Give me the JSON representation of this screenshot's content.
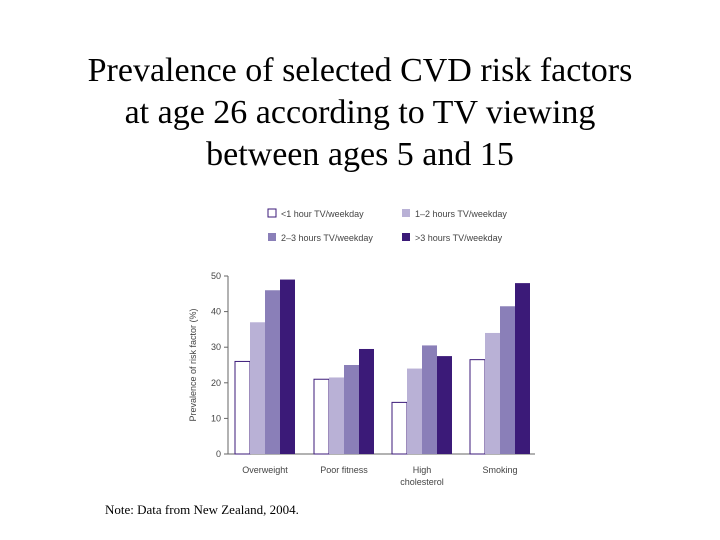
{
  "slide": {
    "title_lines": [
      "Prevalence of selected CVD risk factors",
      "at age 26 according to TV viewing",
      "between ages 5 and 15"
    ],
    "note": "Note: Data from New Zealand, 2004."
  },
  "chart_data": {
    "type": "bar",
    "title": "",
    "xlabel": "",
    "ylabel": "Prevalence of risk factor (%)",
    "ylim": [
      0,
      50
    ],
    "yticks": [
      0,
      10,
      20,
      30,
      40,
      50
    ],
    "grid": false,
    "legend_position": "top",
    "categories": [
      "Overweight",
      "Poor fitness",
      "High\ncholesterol",
      "Smoking"
    ],
    "series": [
      {
        "name": "<1 hour TV/weekday",
        "color": "#ffffff",
        "values": [
          26,
          21,
          14.5,
          26.5
        ]
      },
      {
        "name": "1–2 hours TV/weekday",
        "color": "#b9b1d6",
        "values": [
          37,
          21.5,
          24,
          34
        ]
      },
      {
        "name": "2–3 hours TV/weekday",
        "color": "#8a7fb8",
        "values": [
          46,
          25,
          30.5,
          41.5
        ]
      },
      {
        "name": ">3 hours TV/weekday",
        "color": "#3b1a78",
        "values": [
          49,
          29.5,
          27.5,
          48
        ]
      }
    ]
  }
}
